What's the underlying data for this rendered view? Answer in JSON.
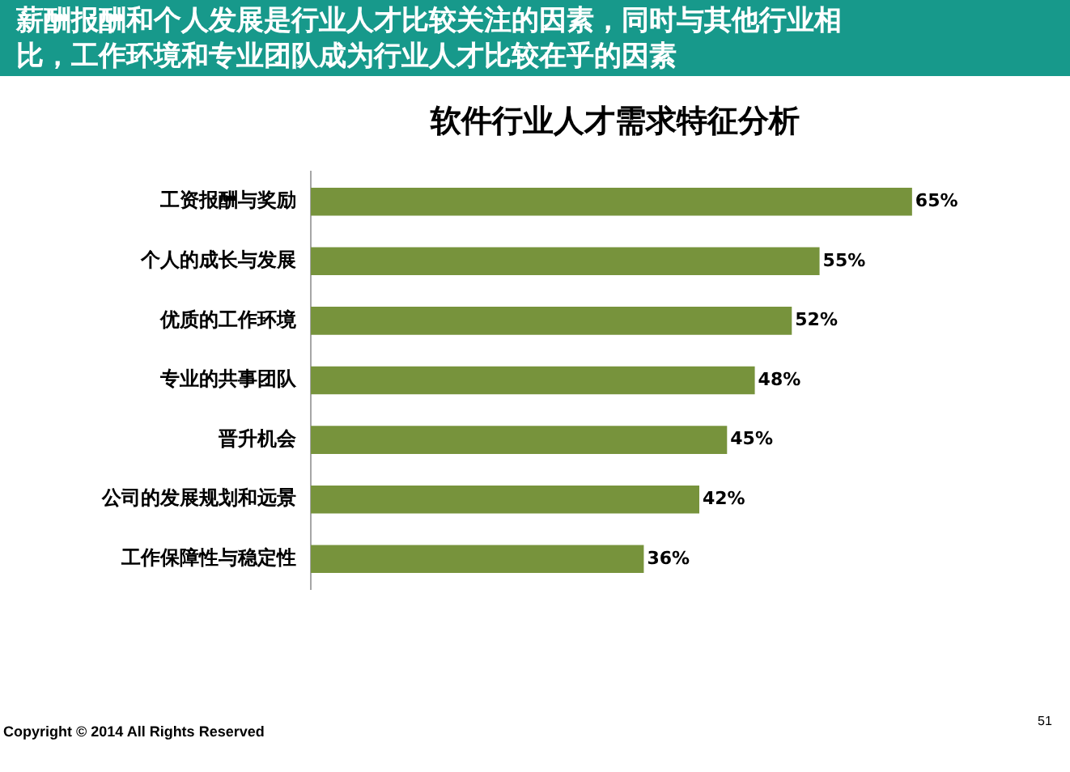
{
  "chart_data": {
    "type": "bar",
    "orientation": "horizontal",
    "title": "软件行业人才需求特征分析",
    "categories": [
      "工资报酬与奖励",
      "个人的成长与发展",
      "优质的工作环境",
      "专业的共事团队",
      "晋升机会",
      "公司的发展规划和远景",
      "工作保障性与稳定性"
    ],
    "values": [
      65,
      55,
      52,
      48,
      45,
      42,
      36
    ],
    "value_labels": [
      "65%",
      "55%",
      "52%",
      "48%",
      "45%",
      "42%",
      "36%"
    ],
    "color": "#77933c",
    "grid": false,
    "legend": false,
    "tick_labels": "y",
    "annotations": [
      "薪酬报酬和个人发展是行业人才比较关注的因素，同时与其他行业相比，工作环境和专业团队成为行业人才比较在乎的因素",
      "Copyright © 2014 All Rights Reserved",
      "51"
    ]
  }
}
